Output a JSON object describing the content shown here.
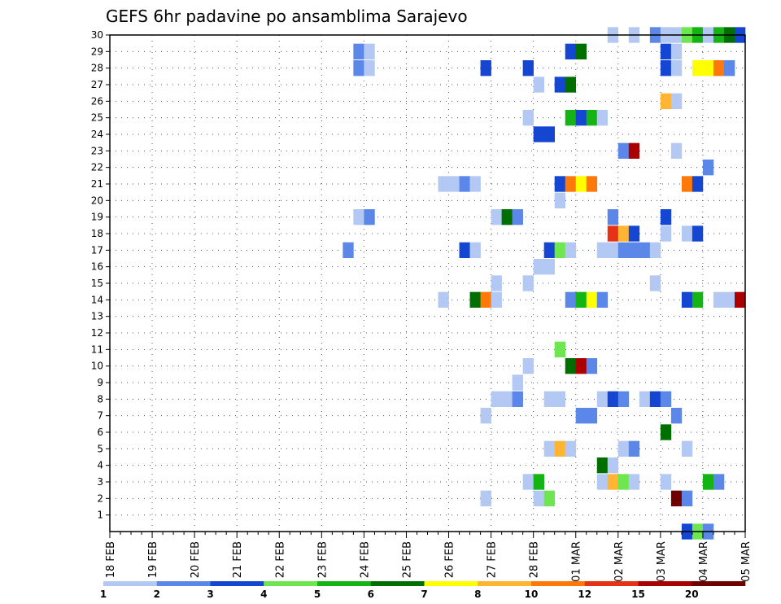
{
  "chart_data": {
    "type": "heatmap",
    "title": "GEFS 6hr padavine po ansamblima Sarajevo",
    "xlabel": "",
    "ylabel": "",
    "x_tick_labels": [
      "18 FEB",
      "19 FEB",
      "20 FEB",
      "21 FEB",
      "22 FEB",
      "23 FEB",
      "24 FEB",
      "25 FEB",
      "26 FEB",
      "27 FEB",
      "28 FEB",
      "01 MAR",
      "02 MAR",
      "03 MAR",
      "04 MAR",
      "05 MAR"
    ],
    "y_range": [
      0,
      30
    ],
    "y_tick_labels": [
      "1",
      "2",
      "3",
      "4",
      "5",
      "6",
      "7",
      "8",
      "9",
      "10",
      "11",
      "12",
      "13",
      "14",
      "15",
      "16",
      "17",
      "18",
      "19",
      "20",
      "21",
      "22",
      "23",
      "24",
      "25",
      "26",
      "27",
      "28",
      "29",
      "30"
    ],
    "time_steps_per_day": 4,
    "grid": "dotted",
    "legend": {
      "position": "bottom",
      "labels": [
        "1",
        "2",
        "3",
        "4",
        "5",
        "6",
        "7",
        "8",
        "10",
        "12",
        "15",
        "20"
      ],
      "colors": [
        "#b4c8f4",
        "#5a87e8",
        "#1446d2",
        "#6ee650",
        "#14b414",
        "#006e00",
        "#ffff00",
        "#ffb432",
        "#ff780a",
        "#e63214",
        "#aa0000",
        "#6e0000"
      ]
    },
    "cells": [
      [
        30,
        47,
        "#b4c8f4"
      ],
      [
        30,
        49,
        "#b4c8f4"
      ],
      [
        30,
        51,
        "#5a87e8"
      ],
      [
        30,
        52,
        "#b4c8f4"
      ],
      [
        30,
        53,
        "#b4c8f4"
      ],
      [
        30,
        54,
        "#6ee650"
      ],
      [
        30,
        55,
        "#14b414"
      ],
      [
        30,
        56,
        "#b4c8f4"
      ],
      [
        30,
        57,
        "#14b414"
      ],
      [
        30,
        58,
        "#006e00"
      ],
      [
        30,
        59,
        "#1446d2"
      ],
      [
        29,
        23,
        "#5a87e8"
      ],
      [
        29,
        24,
        "#b4c8f4"
      ],
      [
        29,
        43,
        "#1446d2"
      ],
      [
        29,
        44,
        "#006e00"
      ],
      [
        29,
        52,
        "#1446d2"
      ],
      [
        29,
        53,
        "#b4c8f4"
      ],
      [
        28,
        23,
        "#5a87e8"
      ],
      [
        28,
        24,
        "#b4c8f4"
      ],
      [
        28,
        35,
        "#1446d2"
      ],
      [
        28,
        39,
        "#1446d2"
      ],
      [
        28,
        52,
        "#1446d2"
      ],
      [
        28,
        53,
        "#b4c8f4"
      ],
      [
        28,
        55,
        "#ffff00"
      ],
      [
        28,
        56,
        "#ffff00"
      ],
      [
        28,
        57,
        "#ff780a"
      ],
      [
        28,
        58,
        "#5a87e8"
      ],
      [
        27,
        40,
        "#b4c8f4"
      ],
      [
        27,
        42,
        "#1446d2"
      ],
      [
        27,
        43,
        "#006e00"
      ],
      [
        26,
        52,
        "#ffb432"
      ],
      [
        26,
        53,
        "#b4c8f4"
      ],
      [
        25,
        39,
        "#b4c8f4"
      ],
      [
        25,
        43,
        "#14b414"
      ],
      [
        25,
        44,
        "#1446d2"
      ],
      [
        25,
        45,
        "#14b414"
      ],
      [
        25,
        46,
        "#b4c8f4"
      ],
      [
        24,
        40,
        "#1446d2"
      ],
      [
        24,
        41,
        "#1446d2"
      ],
      [
        23,
        48,
        "#5a87e8"
      ],
      [
        23,
        49,
        "#aa0000"
      ],
      [
        23,
        53,
        "#b4c8f4"
      ],
      [
        22,
        56,
        "#5a87e8"
      ],
      [
        21,
        31,
        "#b4c8f4"
      ],
      [
        21,
        32,
        "#b4c8f4"
      ],
      [
        21,
        33,
        "#5a87e8"
      ],
      [
        21,
        34,
        "#b4c8f4"
      ],
      [
        21,
        42,
        "#1446d2"
      ],
      [
        21,
        43,
        "#ff780a"
      ],
      [
        21,
        44,
        "#ffff00"
      ],
      [
        21,
        45,
        "#ff780a"
      ],
      [
        21,
        54,
        "#ff780a"
      ],
      [
        21,
        55,
        "#1446d2"
      ],
      [
        20,
        42,
        "#b4c8f4"
      ],
      [
        19,
        23,
        "#b4c8f4"
      ],
      [
        19,
        24,
        "#5a87e8"
      ],
      [
        19,
        36,
        "#b4c8f4"
      ],
      [
        19,
        37,
        "#006e00"
      ],
      [
        19,
        38,
        "#5a87e8"
      ],
      [
        19,
        47,
        "#5a87e8"
      ],
      [
        19,
        52,
        "#1446d2"
      ],
      [
        18,
        47,
        "#e63214"
      ],
      [
        18,
        48,
        "#ffb432"
      ],
      [
        18,
        49,
        "#1446d2"
      ],
      [
        18,
        52,
        "#b4c8f4"
      ],
      [
        18,
        54,
        "#b4c8f4"
      ],
      [
        18,
        55,
        "#1446d2"
      ],
      [
        17,
        22,
        "#5a87e8"
      ],
      [
        17,
        33,
        "#1446d2"
      ],
      [
        17,
        34,
        "#b4c8f4"
      ],
      [
        17,
        41,
        "#1446d2"
      ],
      [
        17,
        42,
        "#6ee650"
      ],
      [
        17,
        43,
        "#b4c8f4"
      ],
      [
        17,
        46,
        "#b4c8f4"
      ],
      [
        17,
        47,
        "#b4c8f4"
      ],
      [
        17,
        48,
        "#5a87e8"
      ],
      [
        17,
        49,
        "#5a87e8"
      ],
      [
        17,
        50,
        "#5a87e8"
      ],
      [
        17,
        51,
        "#b4c8f4"
      ],
      [
        16,
        40,
        "#b4c8f4"
      ],
      [
        16,
        41,
        "#b4c8f4"
      ],
      [
        15,
        36,
        "#b4c8f4"
      ],
      [
        15,
        39,
        "#b4c8f4"
      ],
      [
        15,
        51,
        "#b4c8f4"
      ],
      [
        14,
        31,
        "#b4c8f4"
      ],
      [
        14,
        34,
        "#006e00"
      ],
      [
        14,
        35,
        "#ff780a"
      ],
      [
        14,
        36,
        "#b4c8f4"
      ],
      [
        14,
        43,
        "#5a87e8"
      ],
      [
        14,
        44,
        "#14b414"
      ],
      [
        14,
        45,
        "#ffff00"
      ],
      [
        14,
        46,
        "#5a87e8"
      ],
      [
        14,
        54,
        "#1446d2"
      ],
      [
        14,
        55,
        "#14b414"
      ],
      [
        14,
        57,
        "#b4c8f4"
      ],
      [
        14,
        58,
        "#b4c8f4"
      ],
      [
        11,
        42,
        "#6ee650"
      ],
      [
        10,
        39,
        "#b4c8f4"
      ],
      [
        10,
        43,
        "#006e00"
      ],
      [
        10,
        44,
        "#aa0000"
      ],
      [
        10,
        45,
        "#5a87e8"
      ],
      [
        9,
        38,
        "#b4c8f4"
      ],
      [
        8,
        36,
        "#b4c8f4"
      ],
      [
        8,
        37,
        "#b4c8f4"
      ],
      [
        8,
        38,
        "#5a87e8"
      ],
      [
        8,
        41,
        "#b4c8f4"
      ],
      [
        8,
        42,
        "#b4c8f4"
      ],
      [
        8,
        46,
        "#b4c8f4"
      ],
      [
        8,
        47,
        "#1446d2"
      ],
      [
        8,
        48,
        "#5a87e8"
      ],
      [
        8,
        50,
        "#b4c8f4"
      ],
      [
        8,
        51,
        "#1446d2"
      ],
      [
        8,
        52,
        "#5a87e8"
      ],
      [
        7,
        35,
        "#b4c8f4"
      ],
      [
        7,
        44,
        "#5a87e8"
      ],
      [
        7,
        45,
        "#5a87e8"
      ],
      [
        7,
        53,
        "#5a87e8"
      ],
      [
        6,
        52,
        "#006e00"
      ],
      [
        5,
        41,
        "#b4c8f4"
      ],
      [
        5,
        42,
        "#ffb432"
      ],
      [
        5,
        43,
        "#b4c8f4"
      ],
      [
        5,
        48,
        "#b4c8f4"
      ],
      [
        5,
        49,
        "#5a87e8"
      ],
      [
        5,
        54,
        "#b4c8f4"
      ],
      [
        4,
        46,
        "#006e00"
      ],
      [
        4,
        47,
        "#b4c8f4"
      ],
      [
        3,
        39,
        "#b4c8f4"
      ],
      [
        3,
        40,
        "#14b414"
      ],
      [
        3,
        46,
        "#b4c8f4"
      ],
      [
        3,
        47,
        "#ffb432"
      ],
      [
        3,
        48,
        "#6ee650"
      ],
      [
        3,
        49,
        "#b4c8f4"
      ],
      [
        3,
        52,
        "#b4c8f4"
      ],
      [
        3,
        56,
        "#14b414"
      ],
      [
        3,
        57,
        "#5a87e8"
      ],
      [
        2,
        35,
        "#b4c8f4"
      ],
      [
        2,
        40,
        "#b4c8f4"
      ],
      [
        2,
        41,
        "#6ee650"
      ],
      [
        2,
        53,
        "#6e0000"
      ],
      [
        2,
        54,
        "#5a87e8"
      ],
      [
        0,
        54,
        "#1446d2"
      ],
      [
        0,
        55,
        "#6ee650"
      ],
      [
        0,
        56,
        "#5a87e8"
      ],
      [
        14,
        59,
        "#aa0000"
      ]
    ]
  }
}
